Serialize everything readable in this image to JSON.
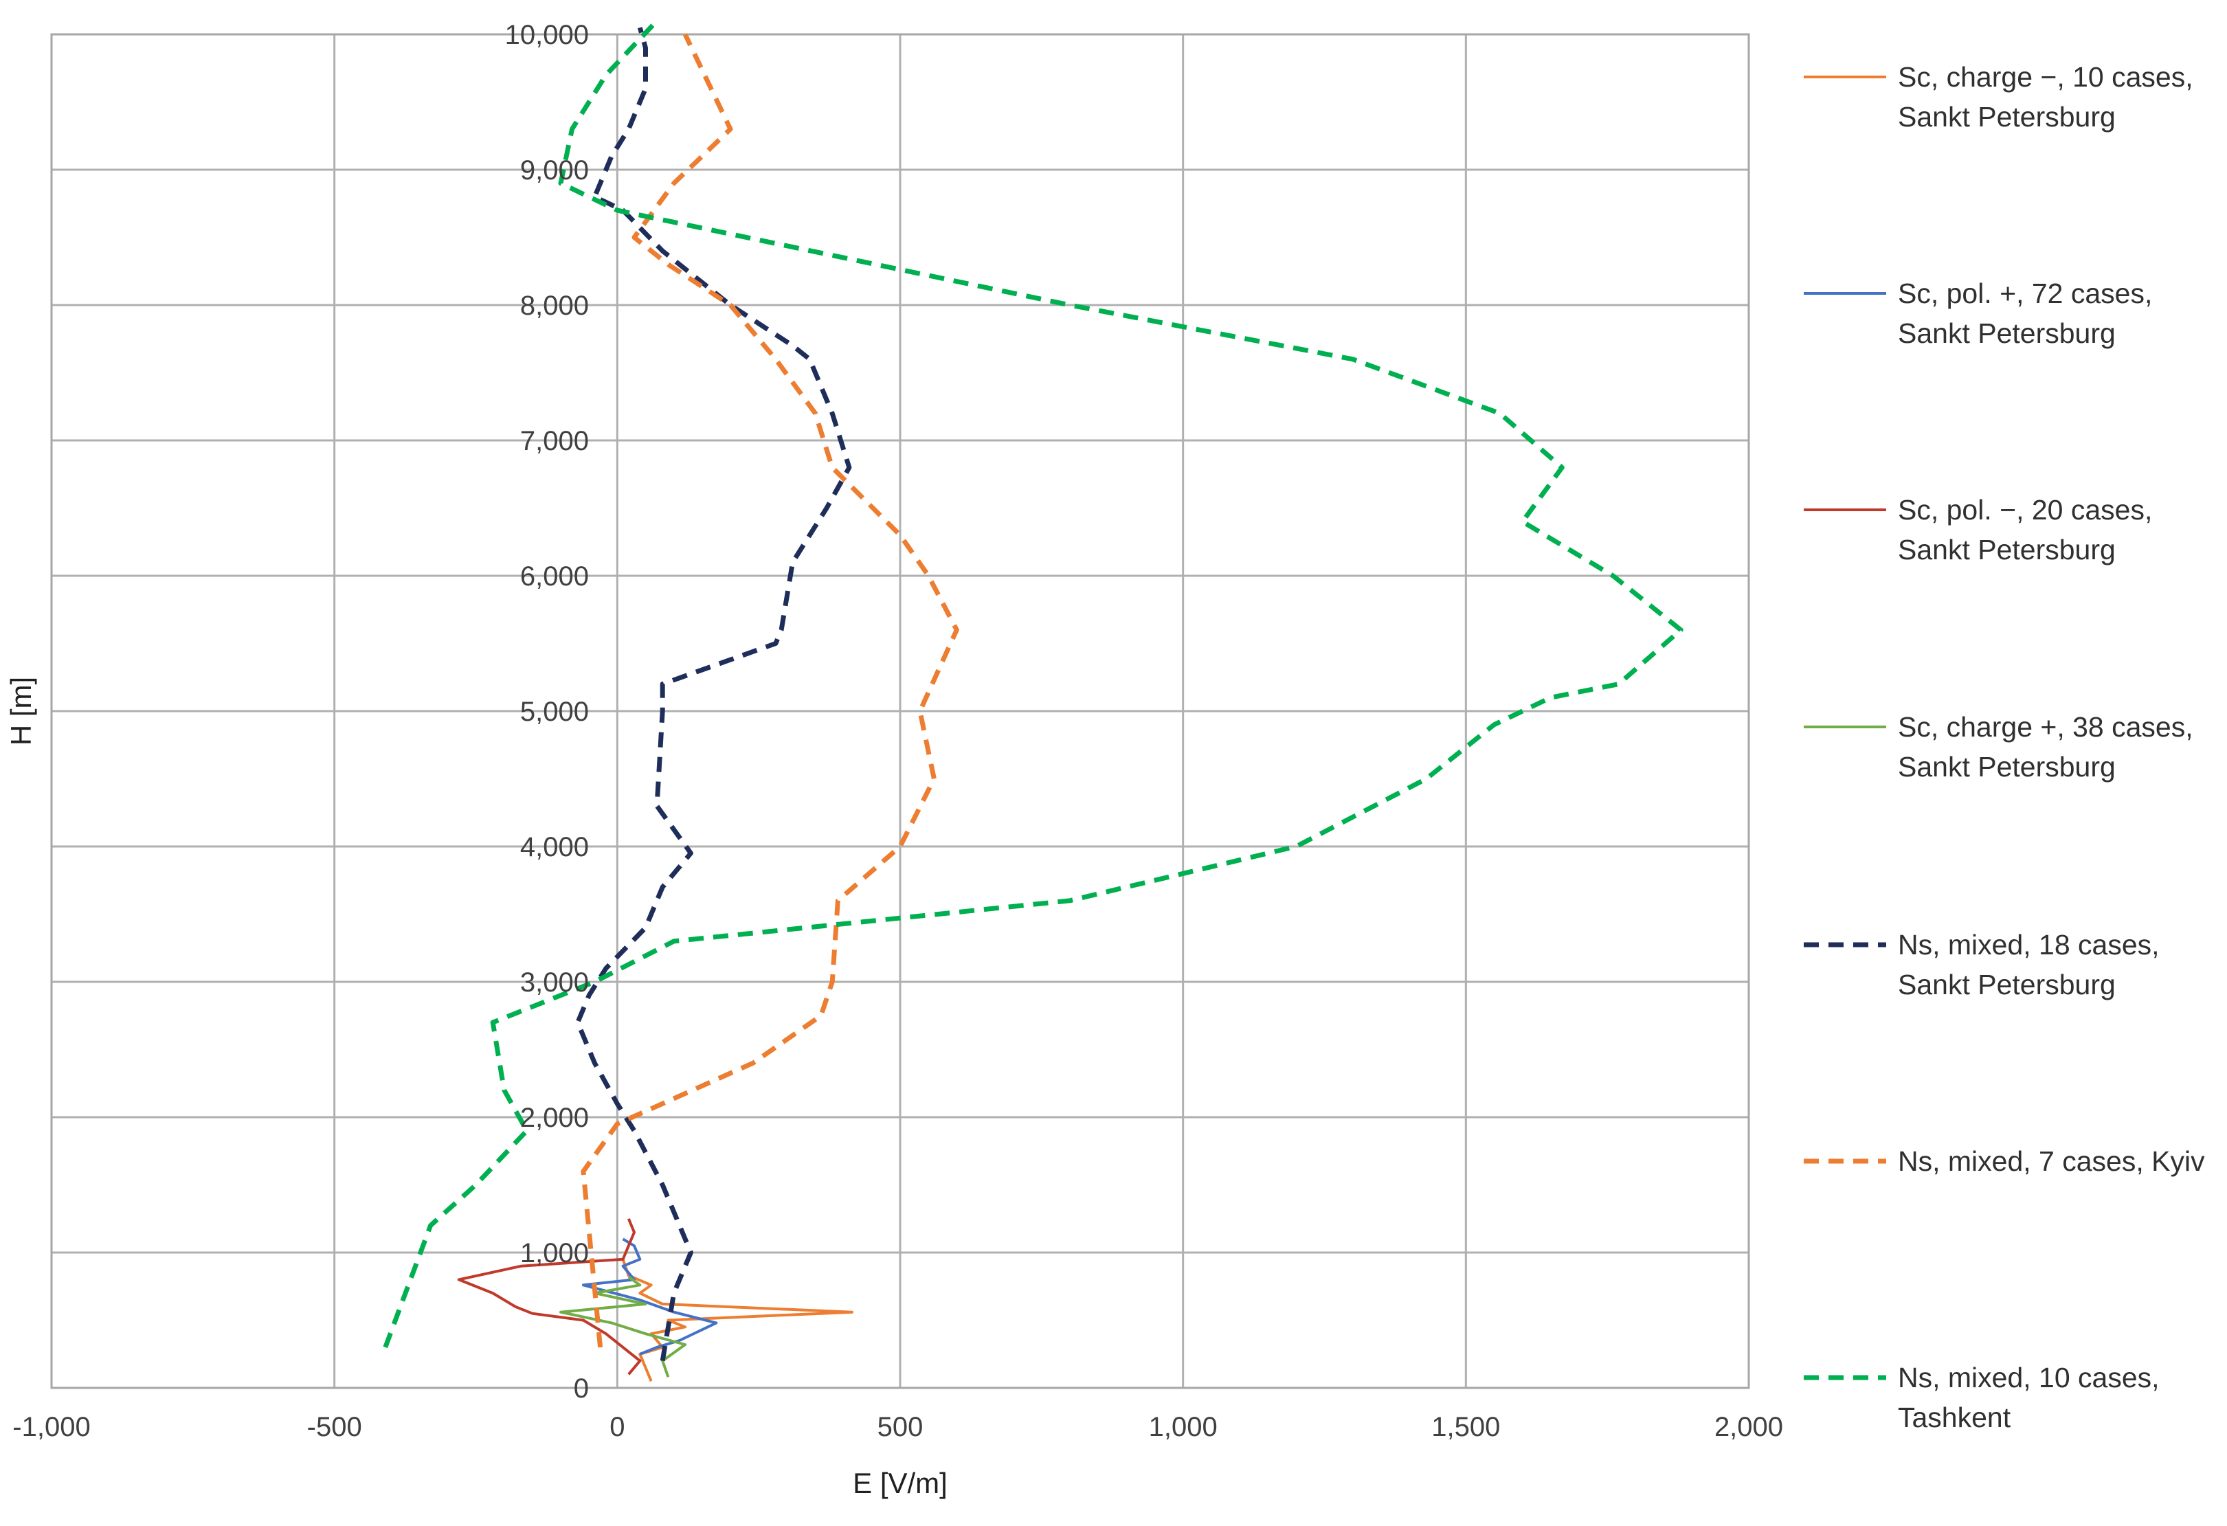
{
  "chart_data": {
    "type": "line",
    "title": "",
    "xlabel": "E [V/m]",
    "ylabel": "H [m]",
    "xlim": [
      -1000,
      2000
    ],
    "ylim": [
      0,
      10000
    ],
    "x_ticks": [
      "-1,000",
      "-500",
      "0",
      "500",
      "1,000",
      "1,500",
      "2,000"
    ],
    "y_ticks": [
      "0",
      "1,000",
      "2,000",
      "3,000",
      "4,000",
      "5,000",
      "6,000",
      "7,000",
      "8,000",
      "9,000",
      "10,000"
    ],
    "grid": true,
    "legend_position": "right",
    "series": [
      {
        "name": "Sc, charge −, 10 cases, Sankt Petersburg",
        "color": "#ED7D31",
        "dash": "solid",
        "points": [
          [
            60,
            50
          ],
          [
            50,
            150
          ],
          [
            40,
            250
          ],
          [
            80,
            300
          ],
          [
            60,
            400
          ],
          [
            120,
            450
          ],
          [
            90,
            500
          ],
          [
            415,
            560
          ],
          [
            80,
            620
          ],
          [
            40,
            700
          ],
          [
            60,
            760
          ],
          [
            20,
            830
          ],
          [
            10,
            950
          ]
        ]
      },
      {
        "name": "Sc, pol. +, 72 cases, Sankt Petersburg",
        "color": "#4472C4",
        "dash": "solid",
        "points": [
          [
            40,
            250
          ],
          [
            70,
            300
          ],
          [
            110,
            350
          ],
          [
            175,
            480
          ],
          [
            100,
            560
          ],
          [
            40,
            650
          ],
          [
            -60,
            760
          ],
          [
            30,
            800
          ],
          [
            10,
            900
          ],
          [
            40,
            950
          ],
          [
            30,
            1050
          ],
          [
            10,
            1100
          ]
        ]
      },
      {
        "name": "Sc, pol. −, 20 cases, Sankt Petersburg",
        "color": "#C0392B",
        "dash": "solid",
        "points": [
          [
            20,
            100
          ],
          [
            40,
            200
          ],
          [
            10,
            300
          ],
          [
            -20,
            400
          ],
          [
            -60,
            500
          ],
          [
            -150,
            550
          ],
          [
            -180,
            600
          ],
          [
            -220,
            700
          ],
          [
            -280,
            800
          ],
          [
            -170,
            900
          ],
          [
            10,
            950
          ],
          [
            30,
            1150
          ],
          [
            20,
            1250
          ]
        ]
      },
      {
        "name": "Sc, charge +, 38 cases, Sankt Petersburg",
        "color": "#70AD47",
        "dash": "solid",
        "points": [
          [
            90,
            80
          ],
          [
            80,
            200
          ],
          [
            120,
            320
          ],
          [
            50,
            400
          ],
          [
            -10,
            480
          ],
          [
            -100,
            560
          ],
          [
            50,
            620
          ],
          [
            -40,
            700
          ],
          [
            40,
            760
          ],
          [
            20,
            820
          ]
        ]
      },
      {
        "name": "Ns, mixed, 18 cases, Sankt Petersburg",
        "color": "#1F2D5A",
        "dash": "dashed",
        "points": [
          [
            80,
            200
          ],
          [
            100,
            700
          ],
          [
            130,
            1000
          ],
          [
            80,
            1500
          ],
          [
            30,
            1900
          ],
          [
            0,
            2100
          ],
          [
            -40,
            2400
          ],
          [
            -70,
            2700
          ],
          [
            -50,
            2900
          ],
          [
            -20,
            3100
          ],
          [
            50,
            3400
          ],
          [
            80,
            3700
          ],
          [
            130,
            3950
          ],
          [
            70,
            4300
          ],
          [
            80,
            5000
          ],
          [
            80,
            5200
          ],
          [
            280,
            5500
          ],
          [
            290,
            5600
          ],
          [
            310,
            6100
          ],
          [
            370,
            6500
          ],
          [
            410,
            6800
          ],
          [
            380,
            7200
          ],
          [
            340,
            7600
          ],
          [
            310,
            7700
          ],
          [
            200,
            8000
          ],
          [
            80,
            8400
          ],
          [
            10,
            8700
          ],
          [
            -40,
            8800
          ],
          [
            -10,
            9100
          ],
          [
            20,
            9300
          ],
          [
            50,
            9600
          ],
          [
            50,
            9900
          ],
          [
            40,
            10050
          ]
        ]
      },
      {
        "name": "Ns, mixed, 7 cases, Kyiv",
        "color": "#ED7D31",
        "dash": "dashed",
        "points": [
          [
            -30,
            300
          ],
          [
            -60,
            1600
          ],
          [
            0,
            1950
          ],
          [
            240,
            2400
          ],
          [
            360,
            2750
          ],
          [
            380,
            3000
          ],
          [
            390,
            3600
          ],
          [
            500,
            4000
          ],
          [
            560,
            4500
          ],
          [
            535,
            5000
          ],
          [
            600,
            5600
          ],
          [
            550,
            6000
          ],
          [
            500,
            6300
          ],
          [
            380,
            6800
          ],
          [
            350,
            7200
          ],
          [
            280,
            7600
          ],
          [
            200,
            8000
          ],
          [
            90,
            8300
          ],
          [
            30,
            8500
          ],
          [
            100,
            8900
          ],
          [
            200,
            9300
          ],
          [
            120,
            10000
          ]
        ]
      },
      {
        "name": "Ns, mixed, 10 cases, Tashkent",
        "color": "#00B050",
        "dash": "dashed",
        "points": [
          [
            -410,
            300
          ],
          [
            -330,
            1200
          ],
          [
            -250,
            1500
          ],
          [
            -160,
            1900
          ],
          [
            -200,
            2200
          ],
          [
            -220,
            2700
          ],
          [
            -40,
            3000
          ],
          [
            100,
            3300
          ],
          [
            800,
            3600
          ],
          [
            1200,
            4000
          ],
          [
            1430,
            4500
          ],
          [
            1550,
            4900
          ],
          [
            1650,
            5100
          ],
          [
            1770,
            5200
          ],
          [
            1880,
            5600
          ],
          [
            1760,
            6000
          ],
          [
            1600,
            6400
          ],
          [
            1670,
            6800
          ],
          [
            1560,
            7200
          ],
          [
            1300,
            7600
          ],
          [
            800,
            8000
          ],
          [
            0,
            8700
          ],
          [
            -100,
            8900
          ],
          [
            -80,
            9300
          ],
          [
            -20,
            9700
          ],
          [
            70,
            10100
          ]
        ]
      }
    ]
  }
}
